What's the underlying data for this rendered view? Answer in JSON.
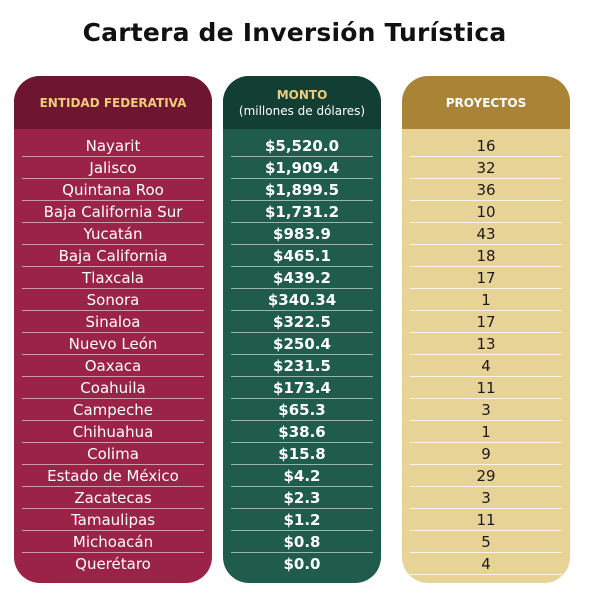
{
  "title": "Cartera de Inversión Turística",
  "columns": {
    "entidad": "ENTIDAD FEDERATIVA",
    "monto": "MONTO",
    "monto_unit": "(millones de dólares)",
    "proyectos": "PROYECTOS"
  },
  "colors": {
    "entidad_bg": "#9b2348",
    "entidad_header": "#6e1530",
    "monto_bg": "#1f5c4c",
    "monto_header": "#123e33",
    "proyectos_bg": "#e8d396",
    "proyectos_header": "#a98336",
    "header_text": "#f0cc7a"
  },
  "chart_data": {
    "type": "table",
    "title": "Cartera de Inversión Turística",
    "columns": [
      "ENTIDAD FEDERATIVA",
      "MONTO (millones de dólares)",
      "PROYECTOS"
    ],
    "rows": [
      {
        "entidad": "Nayarit",
        "monto": "$5,520.0",
        "proyectos": "16"
      },
      {
        "entidad": "Jalisco",
        "monto": "$1,909.4",
        "proyectos": "32"
      },
      {
        "entidad": "Quintana Roo",
        "monto": "$1,899.5",
        "proyectos": "36"
      },
      {
        "entidad": "Baja California Sur",
        "monto": "$1,731.2",
        "proyectos": "10"
      },
      {
        "entidad": "Yucatán",
        "monto": "$983.9",
        "proyectos": "43"
      },
      {
        "entidad": "Baja California",
        "monto": "$465.1",
        "proyectos": "18"
      },
      {
        "entidad": "Tlaxcala",
        "monto": "$439.2",
        "proyectos": "17"
      },
      {
        "entidad": "Sonora",
        "monto": "$340.34",
        "proyectos": "1"
      },
      {
        "entidad": "Sinaloa",
        "monto": "$322.5",
        "proyectos": "17"
      },
      {
        "entidad": "Nuevo León",
        "monto": "$250.4",
        "proyectos": "13"
      },
      {
        "entidad": "Oaxaca",
        "monto": "$231.5",
        "proyectos": "4"
      },
      {
        "entidad": "Coahuila",
        "monto": "$173.4",
        "proyectos": "11"
      },
      {
        "entidad": "Campeche",
        "monto": "$65.3",
        "proyectos": "3"
      },
      {
        "entidad": "Chihuahua",
        "monto": "$38.6",
        "proyectos": "1"
      },
      {
        "entidad": "Colima",
        "monto": "$15.8",
        "proyectos": "9"
      },
      {
        "entidad": "Estado de México",
        "monto": "$4.2",
        "proyectos": "29"
      },
      {
        "entidad": "Zacatecas",
        "monto": "$2.3",
        "proyectos": "3"
      },
      {
        "entidad": "Tamaulipas",
        "monto": "$1.2",
        "proyectos": "11"
      },
      {
        "entidad": "Michoacán",
        "monto": "$0.8",
        "proyectos": "5"
      },
      {
        "entidad": "Querétaro",
        "monto": "$0.0",
        "proyectos": "4"
      }
    ]
  }
}
